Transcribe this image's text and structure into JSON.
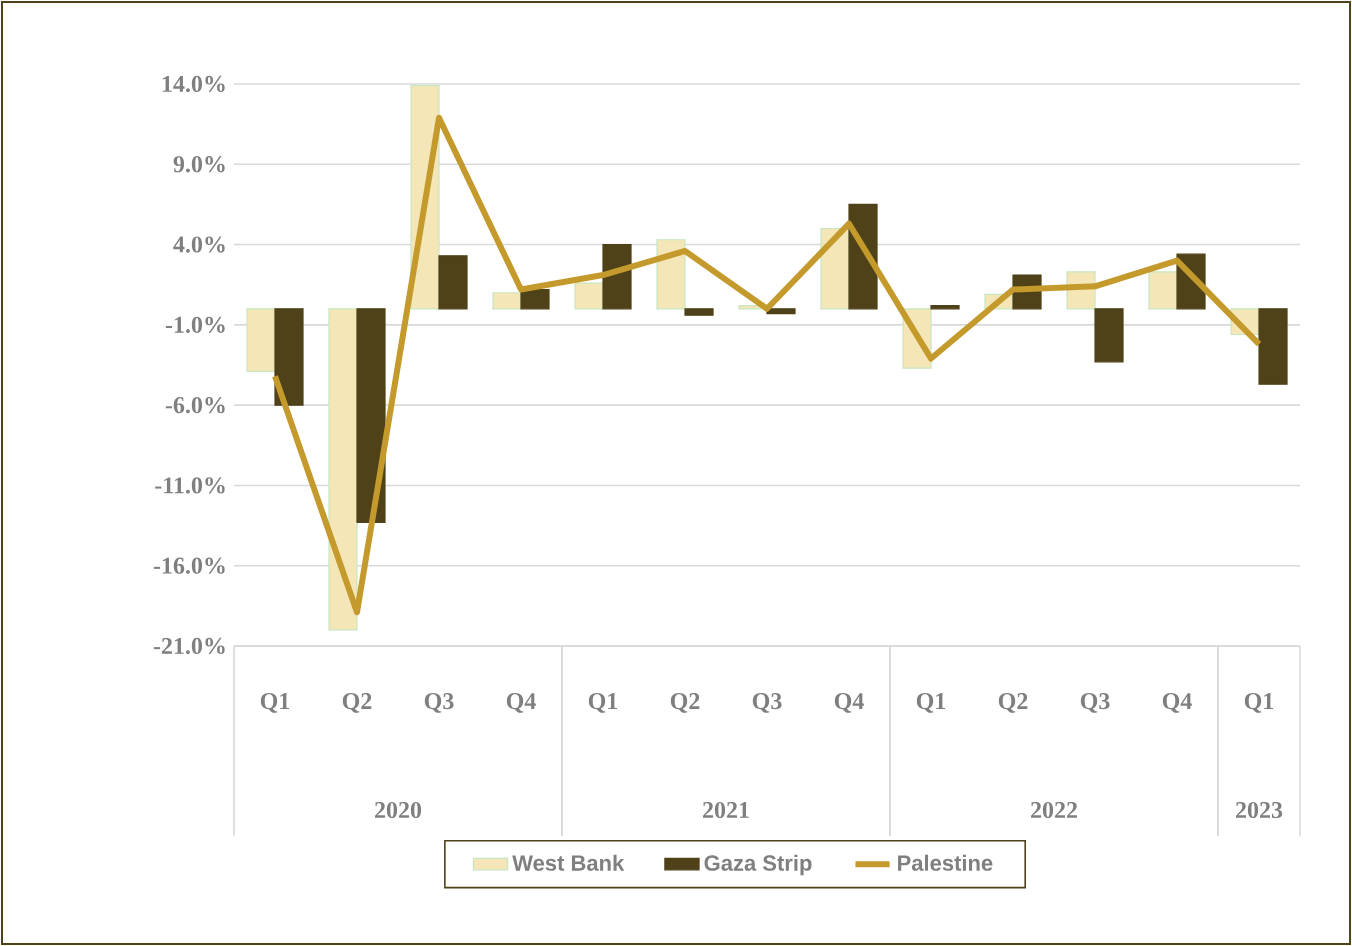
{
  "chart_data": {
    "type": "bar",
    "categories": [
      "Q1",
      "Q2",
      "Q3",
      "Q4",
      "Q1",
      "Q2",
      "Q3",
      "Q4",
      "Q1",
      "Q2",
      "Q3",
      "Q4",
      "Q1"
    ],
    "annotations": [
      "2020",
      "2021",
      "2022",
      "2023"
    ],
    "series": [
      {
        "name": "West Bank",
        "color": "#f5e6b8",
        "values": [
          -3.9,
          -20.0,
          13.9,
          1.0,
          1.6,
          4.3,
          0.2,
          5.0,
          -3.7,
          0.9,
          2.3,
          2.3,
          -1.6
        ]
      },
      {
        "name": "Gaza Strip",
        "color": "#4f4118",
        "values": [
          -6.0,
          -13.3,
          3.3,
          1.2,
          4.0,
          -0.4,
          -0.3,
          6.5,
          0.2,
          2.1,
          -3.3,
          3.4,
          -4.7
        ]
      },
      {
        "name": "Palestine",
        "type": "line",
        "color": "#c49a2c",
        "values": [
          -4.2,
          -18.9,
          11.9,
          1.2,
          2.1,
          3.6,
          0.0,
          5.3,
          -3.1,
          1.2,
          1.4,
          3.0,
          -2.2
        ]
      }
    ],
    "ylim": [
      -21,
      14
    ],
    "yticks": [
      {
        "value": 14,
        "label": "14.0%"
      },
      {
        "value": 9,
        "label": "9.0%"
      },
      {
        "value": 4,
        "label": "4.0%"
      },
      {
        "value": -1,
        "label": "-1.0%"
      },
      {
        "value": -6,
        "label": "-6.0%"
      },
      {
        "value": -11,
        "label": "-11.0%"
      },
      {
        "value": -16,
        "label": "-16.0%"
      },
      {
        "value": -21,
        "label": "-21.0%"
      }
    ],
    "grid": "y",
    "legend": "bottom",
    "marker": "none",
    "line_style": "solid"
  }
}
